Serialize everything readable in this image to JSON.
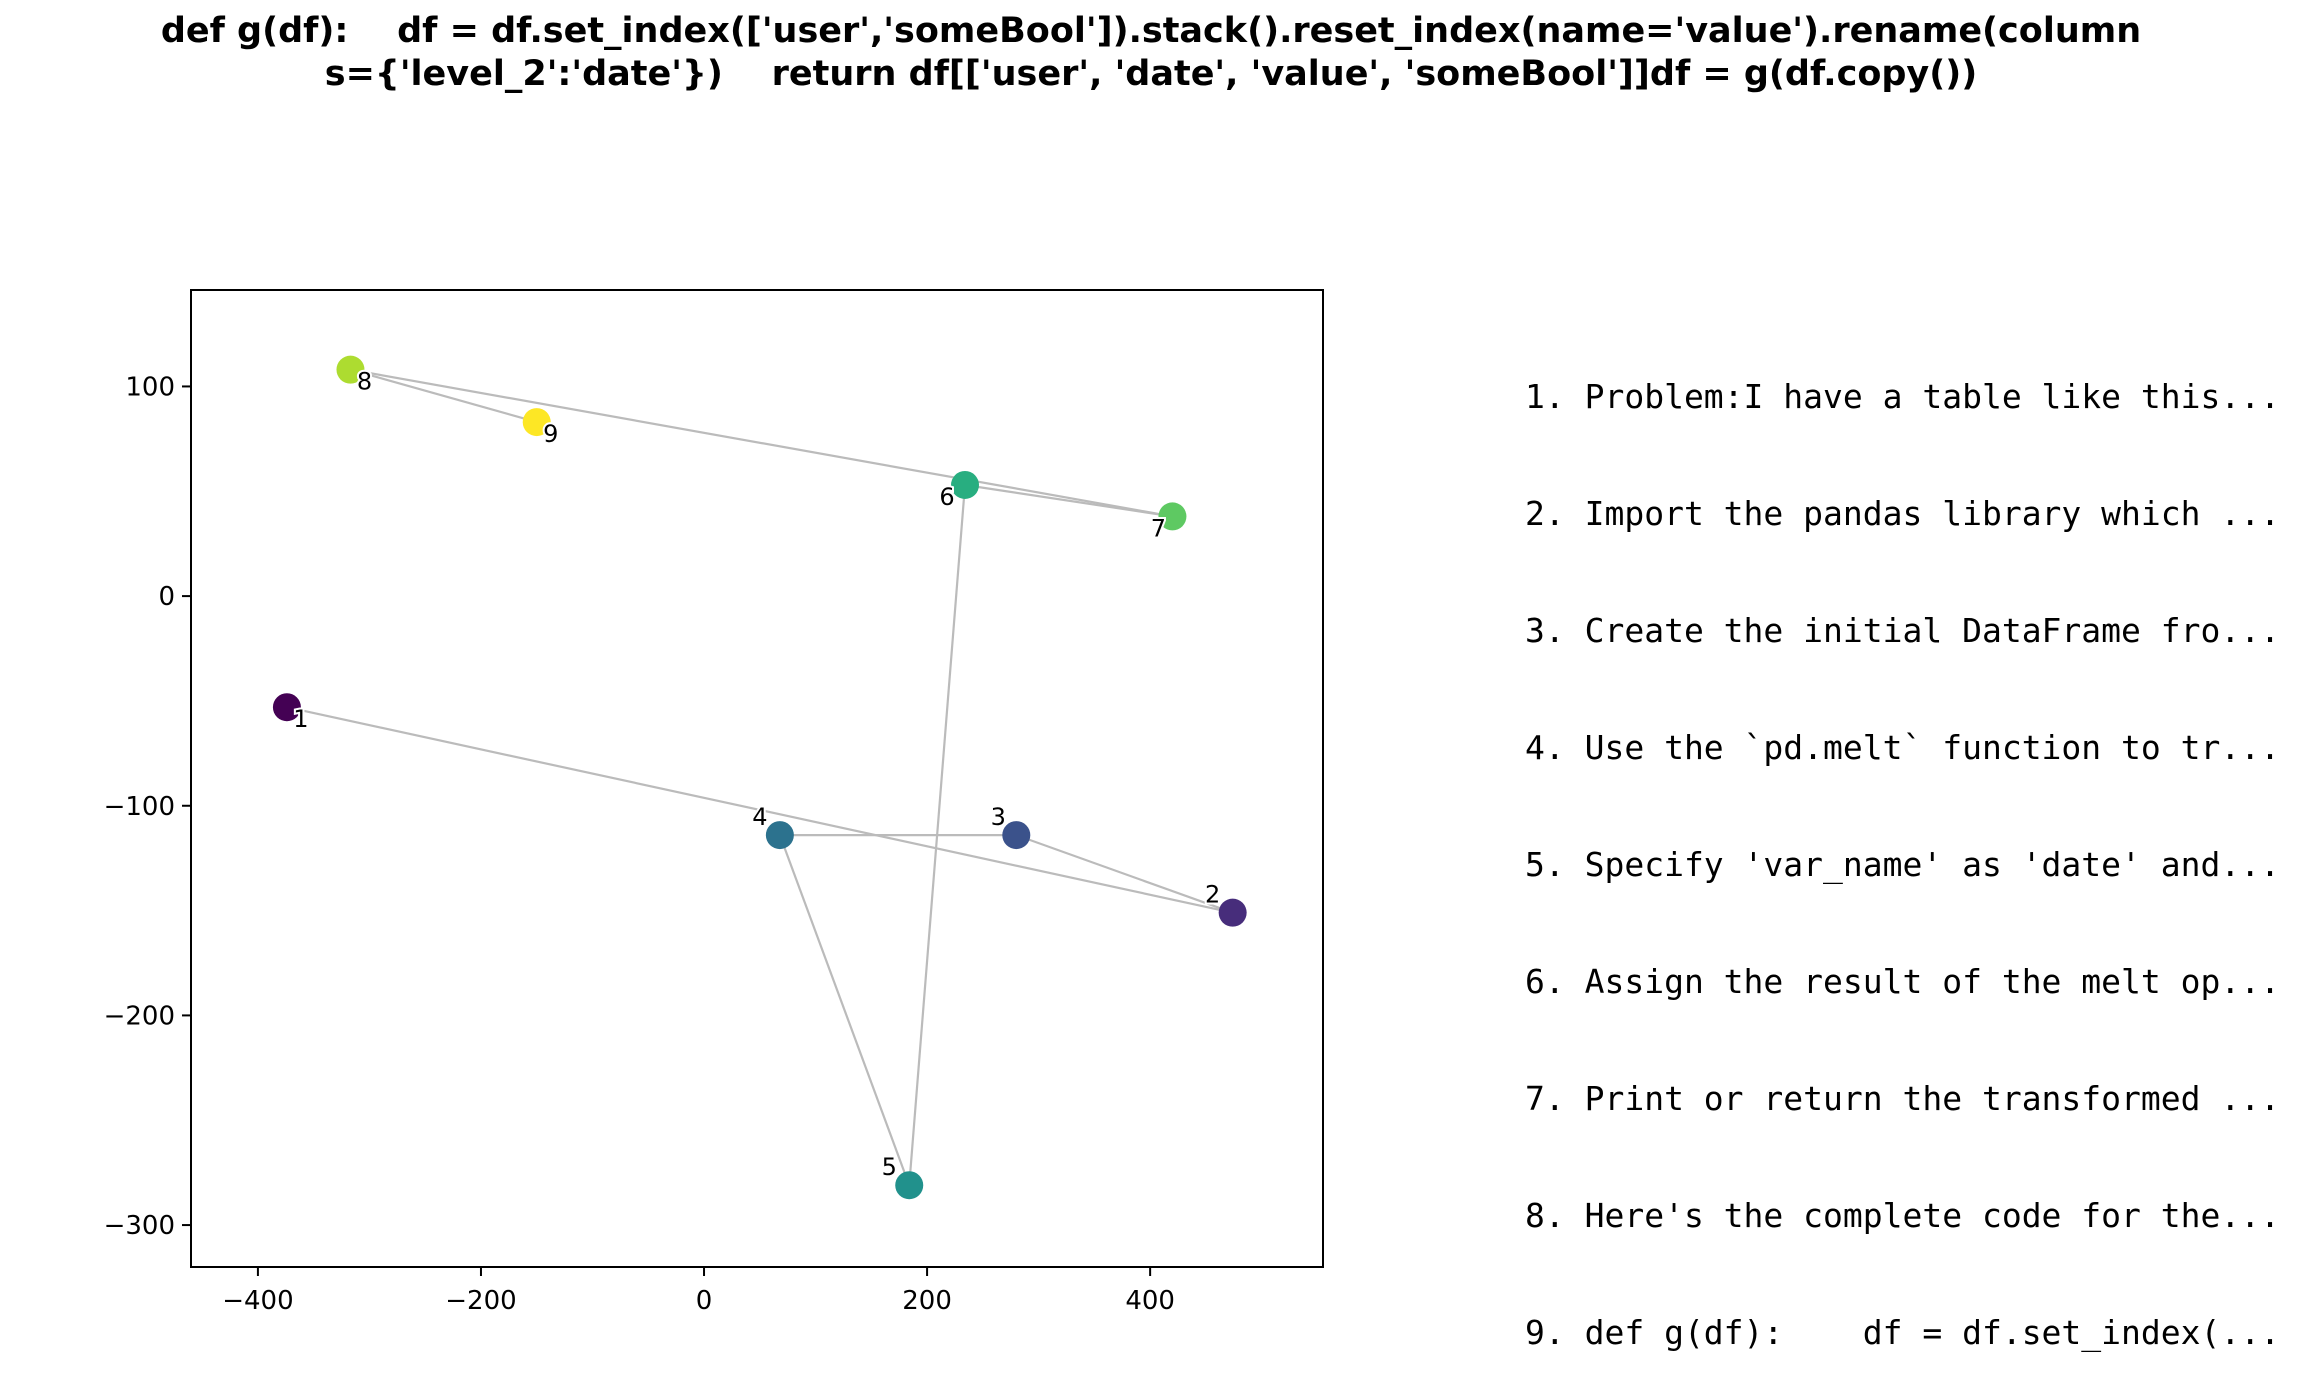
{
  "title": {
    "line1": "def g(df):    df = df.set_index(['user','someBool']).stack().reset_index(name='value').rename(column",
    "line2": "s={'level_2':'date'})    return df[['user', 'date', 'value', 'someBool']]df = g(df.copy())"
  },
  "chart_data": {
    "type": "scatter",
    "title": "def g(df):    df = df.set_index(['user','someBool']).stack().reset_index(name='value').rename(columns={'level_2':'date'})    return df[['user', 'date', 'value', 'someBool']]df = g(df.copy())",
    "xlabel": "",
    "ylabel": "",
    "xlim": [
      -460,
      555
    ],
    "ylim": [
      -320,
      146
    ],
    "xticks": [
      -400,
      -200,
      0,
      200,
      400
    ],
    "yticks": [
      -300,
      -200,
      -100,
      0,
      100
    ],
    "grid": false,
    "connected": true,
    "colormap": "viridis",
    "line_color": "#bbbbbb",
    "points": [
      {
        "label": "1",
        "x": -374,
        "y": -53,
        "color": "#440154"
      },
      {
        "label": "2",
        "x": 474,
        "y": -151,
        "color": "#472d7b"
      },
      {
        "label": "3",
        "x": 280,
        "y": -114,
        "color": "#3b528b"
      },
      {
        "label": "4",
        "x": 68,
        "y": -114,
        "color": "#2c728e"
      },
      {
        "label": "5",
        "x": 184,
        "y": -281,
        "color": "#21918c"
      },
      {
        "label": "6",
        "x": 234,
        "y": 53,
        "color": "#28ae80"
      },
      {
        "label": "7",
        "x": 420,
        "y": 38,
        "color": "#5ec962"
      },
      {
        "label": "8",
        "x": -317,
        "y": 108,
        "color": "#addc30"
      },
      {
        "label": "9",
        "x": -150,
        "y": 83,
        "color": "#fde725"
      }
    ]
  },
  "steps": [
    "1. Problem:I have a table like this...",
    "2. Import the pandas library which ...",
    "3. Create the initial DataFrame fro...",
    "4. Use the `pd.melt` function to tr...",
    "5. Specify 'var_name' as 'date' and...",
    "6. Assign the result of the melt op...",
    "7. Print or return the transformed ...",
    "8. Here's the complete code for the...",
    "9. def g(df):    df = df.set_index(..."
  ]
}
